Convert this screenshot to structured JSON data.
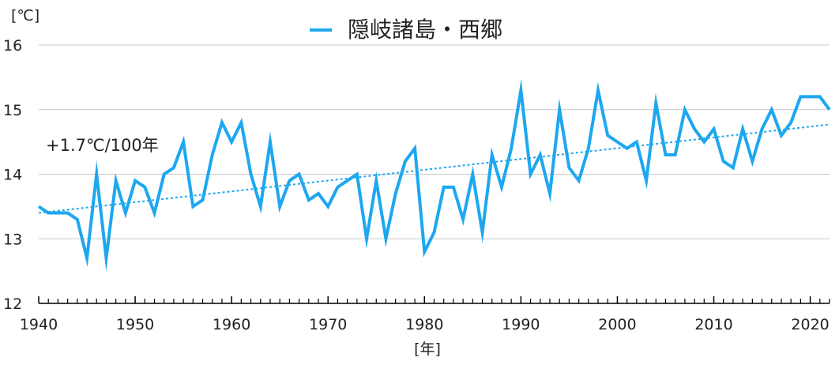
{
  "chart_data": {
    "type": "line",
    "title": "",
    "ylabel": "[℃]",
    "xlabel": "[年]",
    "xlim": [
      1940,
      2022
    ],
    "ylim": [
      12,
      16
    ],
    "x_ticks": [
      1940,
      1950,
      1960,
      1970,
      1980,
      1990,
      2000,
      2010,
      2020
    ],
    "y_ticks": [
      12,
      13,
      14,
      15,
      16
    ],
    "grid": "horizontal",
    "legend": "top-center",
    "annotation": "+1.7℃/100年",
    "series": [
      {
        "name": "隠岐諸島・西郷",
        "color": "#1ea7f0",
        "x": [
          1940,
          1941,
          1942,
          1943,
          1944,
          1945,
          1946,
          1947,
          1948,
          1949,
          1950,
          1951,
          1952,
          1953,
          1954,
          1955,
          1956,
          1957,
          1958,
          1959,
          1960,
          1961,
          1962,
          1963,
          1964,
          1965,
          1966,
          1967,
          1968,
          1969,
          1970,
          1971,
          1972,
          1973,
          1974,
          1975,
          1976,
          1977,
          1978,
          1979,
          1980,
          1981,
          1982,
          1983,
          1984,
          1985,
          1986,
          1987,
          1988,
          1989,
          1990,
          1991,
          1992,
          1993,
          1994,
          1995,
          1996,
          1997,
          1998,
          1999,
          2000,
          2001,
          2002,
          2003,
          2004,
          2005,
          2006,
          2007,
          2008,
          2009,
          2010,
          2011,
          2012,
          2013,
          2014,
          2015,
          2016,
          2017,
          2018,
          2019,
          2020,
          2021,
          2022
        ],
        "values": [
          13.5,
          13.4,
          13.4,
          13.4,
          13.3,
          12.7,
          14.0,
          12.7,
          13.9,
          13.4,
          13.9,
          13.8,
          13.4,
          14.0,
          14.1,
          14.5,
          13.5,
          13.6,
          14.3,
          14.8,
          14.5,
          14.8,
          14.0,
          13.5,
          14.5,
          13.5,
          13.9,
          14.0,
          13.6,
          13.7,
          13.5,
          13.8,
          13.9,
          14.0,
          13.0,
          13.9,
          13.0,
          13.7,
          14.2,
          14.4,
          12.8,
          13.1,
          13.8,
          13.8,
          13.3,
          14.0,
          13.1,
          14.3,
          13.8,
          14.4,
          15.3,
          14.0,
          14.3,
          13.7,
          15.0,
          14.1,
          13.9,
          14.4,
          15.3,
          14.6,
          14.5,
          14.4,
          14.5,
          13.9,
          15.1,
          14.3,
          14.3,
          15.0,
          14.7,
          14.5,
          14.7,
          14.2,
          14.1,
          14.7,
          14.2,
          14.7,
          15.0,
          14.6,
          14.8,
          15.2,
          15.2,
          15.2,
          15.0
        ]
      }
    ],
    "trend": {
      "x": [
        1940,
        2022
      ],
      "values": [
        13.4,
        14.77
      ],
      "color": "#1ea7f0",
      "style": "dotted"
    }
  }
}
